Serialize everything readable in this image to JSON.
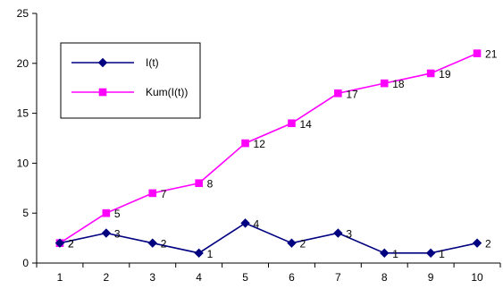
{
  "chart_data": {
    "type": "line",
    "title": "",
    "xlabel": "",
    "ylabel": "",
    "x": [
      1,
      2,
      3,
      4,
      5,
      6,
      7,
      8,
      9,
      10
    ],
    "ylim": [
      0,
      25
    ],
    "yticks": [
      0,
      5,
      10,
      15,
      20,
      25
    ],
    "grid": false,
    "legend_position": "upper-left",
    "series": [
      {
        "name": "I(t)",
        "color": "#000080",
        "marker": "diamond",
        "values": [
          2,
          3,
          2,
          1,
          4,
          2,
          3,
          1,
          1,
          2
        ],
        "labels": [
          "2",
          "3",
          "2",
          "1",
          "4",
          "2",
          "3",
          "1",
          "1",
          "2"
        ]
      },
      {
        "name": "Kum(I(t))",
        "color": "#FF00FF",
        "marker": "square",
        "values": [
          2,
          5,
          7,
          8,
          12,
          14,
          17,
          18,
          19,
          21
        ],
        "labels": [
          "2",
          "5",
          "7",
          "8",
          "12",
          "14",
          "17",
          "18",
          "19",
          "21"
        ]
      }
    ]
  }
}
